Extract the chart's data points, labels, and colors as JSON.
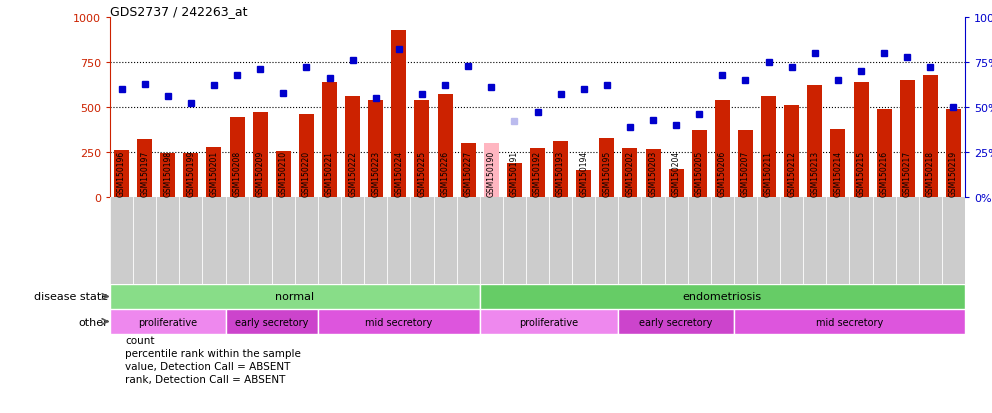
{
  "title": "GDS2737 / 242263_at",
  "samples": [
    "GSM150196",
    "GSM150197",
    "GSM150198",
    "GSM150199",
    "GSM150201",
    "GSM150208",
    "GSM150209",
    "GSM150210",
    "GSM150220",
    "GSM150221",
    "GSM150222",
    "GSM150223",
    "GSM150224",
    "GSM150225",
    "GSM150226",
    "GSM150227",
    "GSM150190",
    "GSM150191",
    "GSM150192",
    "GSM150193",
    "GSM150194",
    "GSM150195",
    "GSM150202",
    "GSM150203",
    "GSM150204",
    "GSM150205",
    "GSM150206",
    "GSM150207",
    "GSM150211",
    "GSM150212",
    "GSM150213",
    "GSM150214",
    "GSM150215",
    "GSM150216",
    "GSM150217",
    "GSM150218",
    "GSM150219"
  ],
  "counts": [
    260,
    320,
    245,
    247,
    280,
    445,
    470,
    255,
    460,
    640,
    560,
    540,
    930,
    540,
    570,
    300,
    300,
    190,
    270,
    310,
    150,
    330,
    270,
    265,
    155,
    375,
    540,
    370,
    560,
    510,
    620,
    380,
    640,
    490,
    650,
    680,
    490
  ],
  "percentile_ranks": [
    60,
    63,
    56,
    52,
    62,
    68,
    71,
    58,
    72,
    66,
    76,
    55,
    82,
    57,
    62,
    73,
    61,
    42,
    47,
    57,
    60,
    62,
    39,
    43,
    40,
    46,
    68,
    65,
    75,
    72,
    80,
    65,
    70,
    80,
    78,
    72,
    50
  ],
  "absent_bar_indices": [
    16
  ],
  "absent_rank_indices": [
    17
  ],
  "bar_color": "#CC2200",
  "absent_bar_color": "#FFB6C1",
  "rank_color": "#0000CC",
  "absent_rank_color": "#BBBBEE",
  "hline_values": [
    250,
    500,
    750
  ],
  "disease_state_bands": [
    {
      "label": "normal",
      "start": 0,
      "end": 16,
      "color": "#88DD88"
    },
    {
      "label": "endometriosis",
      "start": 16,
      "end": 37,
      "color": "#66CC66"
    }
  ],
  "other_bands": [
    {
      "label": "proliferative",
      "start": 0,
      "end": 5,
      "color": "#EE88EE"
    },
    {
      "label": "early secretory",
      "start": 5,
      "end": 9,
      "color": "#CC44CC"
    },
    {
      "label": "mid secretory",
      "start": 9,
      "end": 16,
      "color": "#DD55DD"
    },
    {
      "label": "proliferative",
      "start": 16,
      "end": 22,
      "color": "#EE88EE"
    },
    {
      "label": "early secretory",
      "start": 22,
      "end": 27,
      "color": "#CC44CC"
    },
    {
      "label": "mid secretory",
      "start": 27,
      "end": 37,
      "color": "#DD55DD"
    }
  ],
  "legend_items": [
    {
      "label": "count",
      "color": "#CC2200"
    },
    {
      "label": "percentile rank within the sample",
      "color": "#0000CC"
    },
    {
      "label": "value, Detection Call = ABSENT",
      "color": "#FFB6C1"
    },
    {
      "label": "rank, Detection Call = ABSENT",
      "color": "#BBBBEE"
    }
  ],
  "xtick_bg_color": "#CCCCCC",
  "left_label_color": "#444444"
}
